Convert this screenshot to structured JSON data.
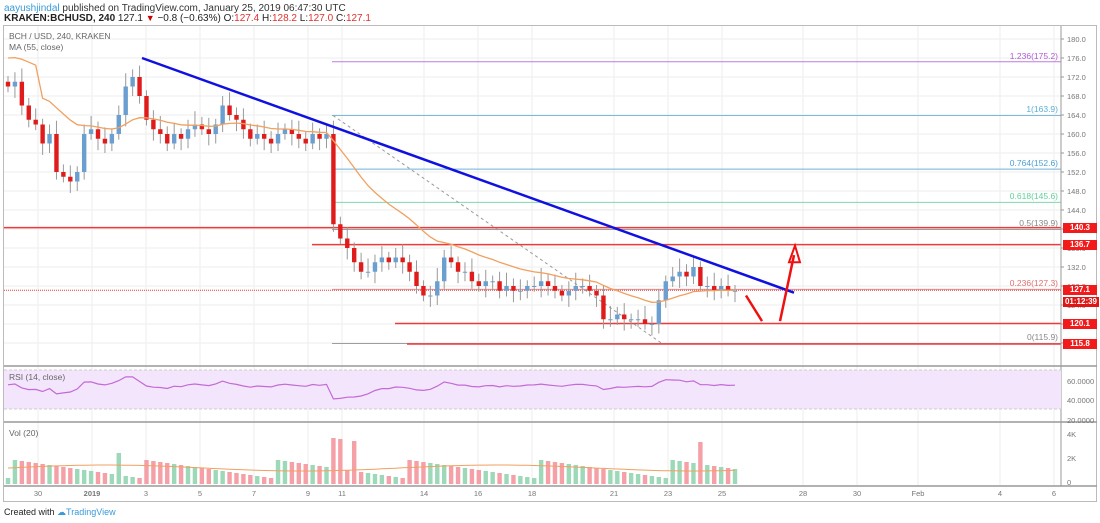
{
  "header": {
    "author": "aayushjindal",
    "published": "published on TradingView.com, January 25, 2019 06:47:30 UTC",
    "symbol": "KRAKEN:BCHUSD, 240",
    "last": "127.1",
    "change": "−0.8 (−0.63%)",
    "o_label": "O:",
    "o": "127.4",
    "h_label": "H:",
    "h": "128.2",
    "l_label": "L:",
    "l": "127.0",
    "c_label": "C:",
    "c": "127.1"
  },
  "legends": {
    "main_title": "BCH / USD, 240, KRAKEN",
    "ma": "MA (55, close)",
    "rsi": "RSI (14, close)",
    "vol": "Vol (20)"
  },
  "footer": {
    "created_with": "Created with",
    "brand": "TradingView"
  },
  "colors": {
    "up": "#6a9fcf",
    "down": "#e01b1b",
    "ma": "#f0a060",
    "trend": "#1010e0",
    "hline": "#f03a3a",
    "rsi": "#c36ad6",
    "rsi_band": "#f3e6fc",
    "vol_up": "#9dd8b8",
    "vol_down": "#f4a0a6"
  },
  "chart_data": {
    "type": "candlestick",
    "title": "BCH / USD, 240, KRAKEN",
    "price_axis": {
      "ticks": [
        180.0,
        176.0,
        172.0,
        168.0,
        164.0,
        160.0,
        156.0,
        152.0,
        148.0,
        144.0,
        140.0,
        136.0,
        132.0,
        128.0,
        124.0,
        120.0,
        116.0
      ],
      "range": [
        113,
        183
      ]
    },
    "x_ticks": [
      "30",
      "2019",
      "3",
      "5",
      "7",
      "9",
      "11",
      "14",
      "16",
      "18",
      "21",
      "23",
      "25",
      "28",
      "30",
      "Feb",
      "4",
      "6"
    ],
    "price_tags": [
      {
        "label": "140.3",
        "price": 140.3
      },
      {
        "label": "136.7",
        "price": 136.7
      },
      {
        "label": "127.1",
        "price": 127.1
      },
      {
        "label": "01:12:39",
        "price": 124.7,
        "dark": true
      },
      {
        "label": "120.1",
        "price": 120.1
      },
      {
        "label": "115.8",
        "price": 115.8
      }
    ],
    "fibonacci": [
      {
        "label": "1.236(175.2)",
        "price": 175.2,
        "color": "#b05ad6"
      },
      {
        "label": "1(163.9)",
        "price": 163.9,
        "color": "#5aaed6"
      },
      {
        "label": "0.764(152.6)",
        "price": 152.6,
        "color": "#4aa0d0"
      },
      {
        "label": "0.618(145.6)",
        "price": 145.6,
        "color": "#5ecf9a"
      },
      {
        "label": "0.5(139.9)",
        "price": 139.9,
        "color": "#888888"
      },
      {
        "label": "0.236(127.3)",
        "price": 127.3,
        "color": "#e07070"
      },
      {
        "label": "0(115.9)",
        "price": 115.9,
        "color": "#888888"
      }
    ],
    "horizontal_lines": [
      140.3,
      136.7,
      127.1,
      120.1,
      115.8
    ],
    "trendline": {
      "from": [
        "Jan 3",
        176.0
      ],
      "to": [
        "Jan 27",
        126.5
      ]
    },
    "last_price": 127.1,
    "rsi": {
      "name": "RSI (14, close)",
      "ticks": [
        "60.0000",
        "40.0000",
        "20.0000"
      ],
      "band": [
        30,
        70
      ]
    },
    "volume": {
      "name": "Vol (20)",
      "ticks": [
        "4K",
        "2K",
        "0"
      ]
    },
    "annotations": [
      "down arrow to ~121",
      "up arrow to ~136"
    ]
  },
  "axis": {
    "price_labels": [
      "180.0",
      "176.0",
      "172.0",
      "168.0",
      "164.0",
      "160.0",
      "156.0",
      "152.0",
      "148.0",
      "144.0",
      "140.0",
      "136.0",
      "132.0",
      "128.0",
      "124.0",
      "120.0",
      "116.0"
    ],
    "rsi_labels": [
      "60.0000",
      "40.0000",
      "20.0000"
    ],
    "vol_labels": [
      "4K",
      "2K",
      "0"
    ]
  }
}
